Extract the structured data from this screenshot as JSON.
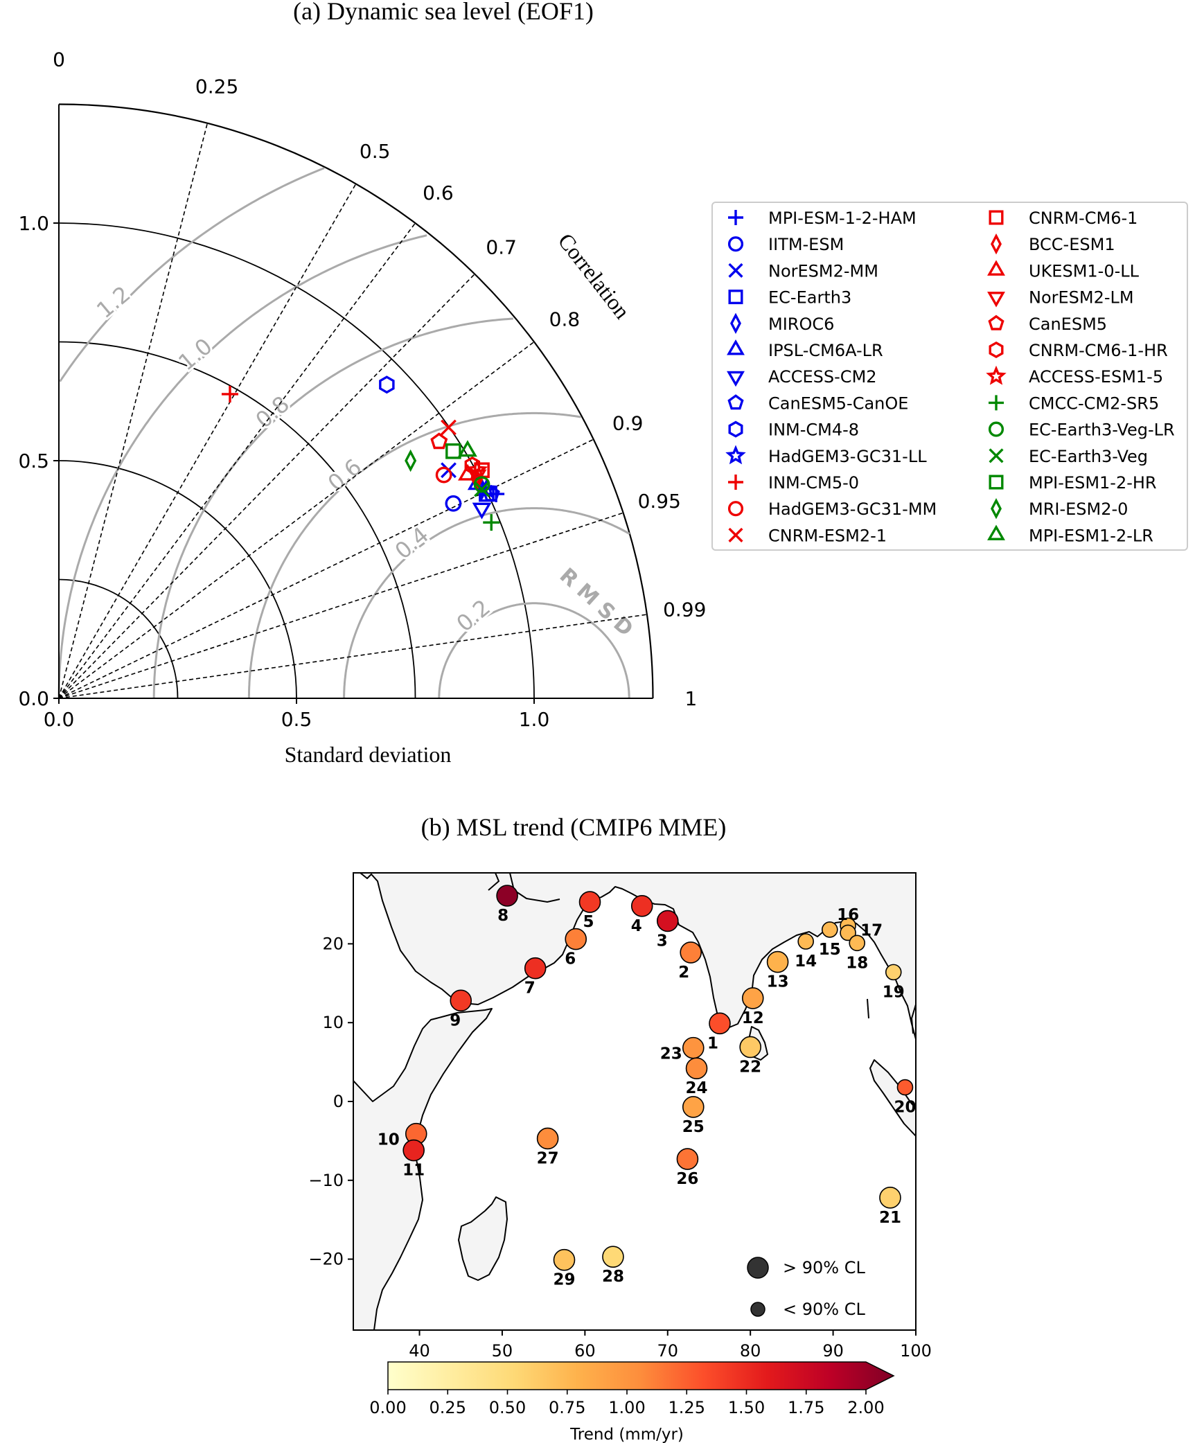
{
  "chart_data": [
    {
      "type": "scatter",
      "subtype": "taylor-diagram",
      "title": "(a) Dynamic sea level (EOF1)",
      "xlabel": "Standard deviation",
      "correlation_label": "Correlation",
      "rmsd_label": "RMSD",
      "xlim": [
        0,
        1.25
      ],
      "ylim": [
        0,
        1.25
      ],
      "x_ticks": [
        "0.0",
        "0.5",
        "1.0"
      ],
      "y_ticks": [
        "0.0",
        "0.5",
        "1.0"
      ],
      "std_arcs": [
        0.25,
        0.5,
        0.75,
        1.0,
        1.25
      ],
      "correlation_ticks": [
        {
          "value": 0,
          "label": "0"
        },
        {
          "value": 0.25,
          "label": "0.25"
        },
        {
          "value": 0.5,
          "label": "0.5"
        },
        {
          "value": 0.6,
          "label": "0.6"
        },
        {
          "value": 0.7,
          "label": "0.7"
        },
        {
          "value": 0.8,
          "label": "0.8"
        },
        {
          "value": 0.9,
          "label": "0.9"
        },
        {
          "value": 0.95,
          "label": "0.95"
        },
        {
          "value": 0.99,
          "label": "0.99"
        },
        {
          "value": 1,
          "label": "1"
        }
      ],
      "reference_std": 1.0,
      "rmsd_contours": [
        {
          "value": 0.2,
          "label": "0.2"
        },
        {
          "value": 0.4,
          "label": "0.4"
        },
        {
          "value": 0.6,
          "label": "0.6"
        },
        {
          "value": 0.8,
          "label": "0.8"
        },
        {
          "value": 1.0,
          "label": "1.0"
        },
        {
          "value": 1.2,
          "label": "1.2"
        }
      ],
      "colors": {
        "blue": "#0000ee",
        "red": "#ee0000",
        "green": "#008800",
        "grey": "#aaaaaa"
      },
      "legend_position": "right",
      "models": [
        {
          "name": "MPI-ESM-1-2-HAM",
          "color": "blue",
          "marker": "plus",
          "x": 0.92,
          "y": 0.43
        },
        {
          "name": "IITM-ESM",
          "color": "blue",
          "marker": "circle",
          "x": 0.83,
          "y": 0.41
        },
        {
          "name": "NorESM2-MM",
          "color": "blue",
          "marker": "x",
          "x": 0.82,
          "y": 0.48
        },
        {
          "name": "EC-Earth3",
          "color": "blue",
          "marker": "square",
          "x": 0.9,
          "y": 0.43
        },
        {
          "name": "MIROC6",
          "color": "blue",
          "marker": "diamond",
          "x": 0.89,
          "y": 0.44
        },
        {
          "name": "IPSL-CM6A-LR",
          "color": "blue",
          "marker": "triangle-up",
          "x": 0.88,
          "y": 0.45
        },
        {
          "name": "ACCESS-CM2",
          "color": "blue",
          "marker": "triangle-down",
          "x": 0.89,
          "y": 0.4
        },
        {
          "name": "CanESM5-CanOE",
          "color": "blue",
          "marker": "pentagon",
          "x": 0.91,
          "y": 0.43
        },
        {
          "name": "INM-CM4-8",
          "color": "blue",
          "marker": "hexagon",
          "x": 0.69,
          "y": 0.66
        },
        {
          "name": "HadGEM3-GC31-LL",
          "color": "blue",
          "marker": "star",
          "x": 0.9,
          "y": 0.44
        },
        {
          "name": "INM-CM5-0",
          "color": "red",
          "marker": "plus",
          "x": 0.36,
          "y": 0.64
        },
        {
          "name": "HadGEM3-GC31-MM",
          "color": "red",
          "marker": "circle",
          "x": 0.81,
          "y": 0.47
        },
        {
          "name": "CNRM-ESM2-1",
          "color": "red",
          "marker": "x",
          "x": 0.82,
          "y": 0.57
        },
        {
          "name": "CNRM-CM6-1",
          "color": "red",
          "marker": "square",
          "x": 0.89,
          "y": 0.48
        },
        {
          "name": "BCC-ESM1",
          "color": "red",
          "marker": "diamond",
          "x": 0.88,
          "y": 0.46
        },
        {
          "name": "UKESM1-0-LL",
          "color": "red",
          "marker": "triangle-up",
          "x": 0.86,
          "y": 0.47
        },
        {
          "name": "NorESM2-LM",
          "color": "red",
          "marker": "triangle-down",
          "x": 0.88,
          "y": 0.47
        },
        {
          "name": "CanESM5",
          "color": "red",
          "marker": "pentagon",
          "x": 0.8,
          "y": 0.54
        },
        {
          "name": "CNRM-CM6-1-HR",
          "color": "red",
          "marker": "hexagon",
          "x": 0.87,
          "y": 0.49
        },
        {
          "name": "ACCESS-ESM1-5",
          "color": "red",
          "marker": "star",
          "x": 0.88,
          "y": 0.48
        },
        {
          "name": "CMCC-CM2-SR5",
          "color": "green",
          "marker": "plus",
          "x": 0.91,
          "y": 0.37
        },
        {
          "name": "EC-Earth3-Veg-LR",
          "color": "green",
          "marker": "circle",
          "x": 0.89,
          "y": 0.45
        },
        {
          "name": "EC-Earth3-Veg",
          "color": "green",
          "marker": "x",
          "x": 0.89,
          "y": 0.44
        },
        {
          "name": "MPI-ESM1-2-HR",
          "color": "green",
          "marker": "square",
          "x": 0.83,
          "y": 0.52
        },
        {
          "name": "MRI-ESM2-0",
          "color": "green",
          "marker": "diamond",
          "x": 0.74,
          "y": 0.5
        },
        {
          "name": "MPI-ESM1-2-LR",
          "color": "green",
          "marker": "triangle-up",
          "x": 0.86,
          "y": 0.52
        }
      ]
    },
    {
      "type": "scatter",
      "subtype": "map",
      "title": "(b) MSL trend (CMIP6 MME)",
      "xlim": [
        32,
        100
      ],
      "ylim": [
        -29,
        29
      ],
      "x_ticks": [
        40,
        50,
        60,
        70,
        80,
        90,
        100
      ],
      "y_ticks": [
        20,
        10,
        0,
        -10,
        -20
      ],
      "y_tick_labels": [
        "20",
        "10",
        "0",
        "−10",
        "−20"
      ],
      "colorbar": {
        "label": "Trend (mm/yr)",
        "min": 0.0,
        "max": 2.0,
        "ticks": [
          "0.00",
          "0.25",
          "0.50",
          "0.75",
          "1.00",
          "1.25",
          "1.50",
          "1.75",
          "2.00"
        ],
        "extend": "max",
        "colormap": "YlOrRd"
      },
      "size_legend": [
        {
          "label": "> 90% CL",
          "significant": true
        },
        {
          "label": "< 90% CL",
          "significant": false
        }
      ],
      "stations": [
        {
          "id": "1",
          "lon": 76.3,
          "lat": 9.9,
          "trend": 1.25,
          "significant": true
        },
        {
          "id": "2",
          "lon": 72.8,
          "lat": 18.9,
          "trend": 1.05,
          "significant": true
        },
        {
          "id": "3",
          "lon": 70.0,
          "lat": 22.9,
          "trend": 1.6,
          "significant": true
        },
        {
          "id": "4",
          "lon": 66.9,
          "lat": 24.8,
          "trend": 1.4,
          "significant": true
        },
        {
          "id": "5",
          "lon": 60.6,
          "lat": 25.3,
          "trend": 1.35,
          "significant": true
        },
        {
          "id": "6",
          "lon": 58.9,
          "lat": 20.6,
          "trend": 1.05,
          "significant": true
        },
        {
          "id": "7",
          "lon": 54.0,
          "lat": 16.9,
          "trend": 1.4,
          "significant": true
        },
        {
          "id": "8",
          "lon": 50.6,
          "lat": 26.1,
          "trend": 1.95,
          "significant": true
        },
        {
          "id": "9",
          "lon": 45.0,
          "lat": 12.8,
          "trend": 1.35,
          "significant": true
        },
        {
          "id": "10",
          "lon": 39.6,
          "lat": -4.1,
          "trend": 1.15,
          "significant": true
        },
        {
          "id": "11",
          "lon": 39.3,
          "lat": -6.2,
          "trend": 1.45,
          "significant": true
        },
        {
          "id": "12",
          "lon": 80.3,
          "lat": 13.1,
          "trend": 0.85,
          "significant": true
        },
        {
          "id": "13",
          "lon": 83.3,
          "lat": 17.7,
          "trend": 0.75,
          "significant": true
        },
        {
          "id": "14",
          "lon": 86.7,
          "lat": 20.3,
          "trend": 0.7,
          "significant": false
        },
        {
          "id": "15",
          "lon": 89.6,
          "lat": 21.8,
          "trend": 0.7,
          "significant": false
        },
        {
          "id": "16",
          "lon": 91.8,
          "lat": 22.3,
          "trend": 0.7,
          "significant": false
        },
        {
          "id": "17",
          "lon": 91.8,
          "lat": 21.4,
          "trend": 0.7,
          "significant": false
        },
        {
          "id": "18",
          "lon": 92.9,
          "lat": 20.1,
          "trend": 0.7,
          "significant": false
        },
        {
          "id": "19",
          "lon": 97.3,
          "lat": 16.4,
          "trend": 0.55,
          "significant": false
        },
        {
          "id": "20",
          "lon": 98.7,
          "lat": 1.8,
          "trend": 1.2,
          "significant": false
        },
        {
          "id": "21",
          "lon": 96.9,
          "lat": -12.2,
          "trend": 0.55,
          "significant": true
        },
        {
          "id": "22",
          "lon": 80.0,
          "lat": 6.9,
          "trend": 0.6,
          "significant": true
        },
        {
          "id": "23",
          "lon": 73.1,
          "lat": 6.8,
          "trend": 0.95,
          "significant": true
        },
        {
          "id": "24",
          "lon": 73.5,
          "lat": 4.2,
          "trend": 1.0,
          "significant": true
        },
        {
          "id": "25",
          "lon": 73.1,
          "lat": -0.7,
          "trend": 0.85,
          "significant": true
        },
        {
          "id": "26",
          "lon": 72.4,
          "lat": -7.3,
          "trend": 1.1,
          "significant": true
        },
        {
          "id": "27",
          "lon": 55.5,
          "lat": -4.7,
          "trend": 1.0,
          "significant": true
        },
        {
          "id": "28",
          "lon": 63.4,
          "lat": -19.7,
          "trend": 0.5,
          "significant": true
        },
        {
          "id": "29",
          "lon": 57.5,
          "lat": -20.1,
          "trend": 0.65,
          "significant": true
        }
      ]
    }
  ]
}
